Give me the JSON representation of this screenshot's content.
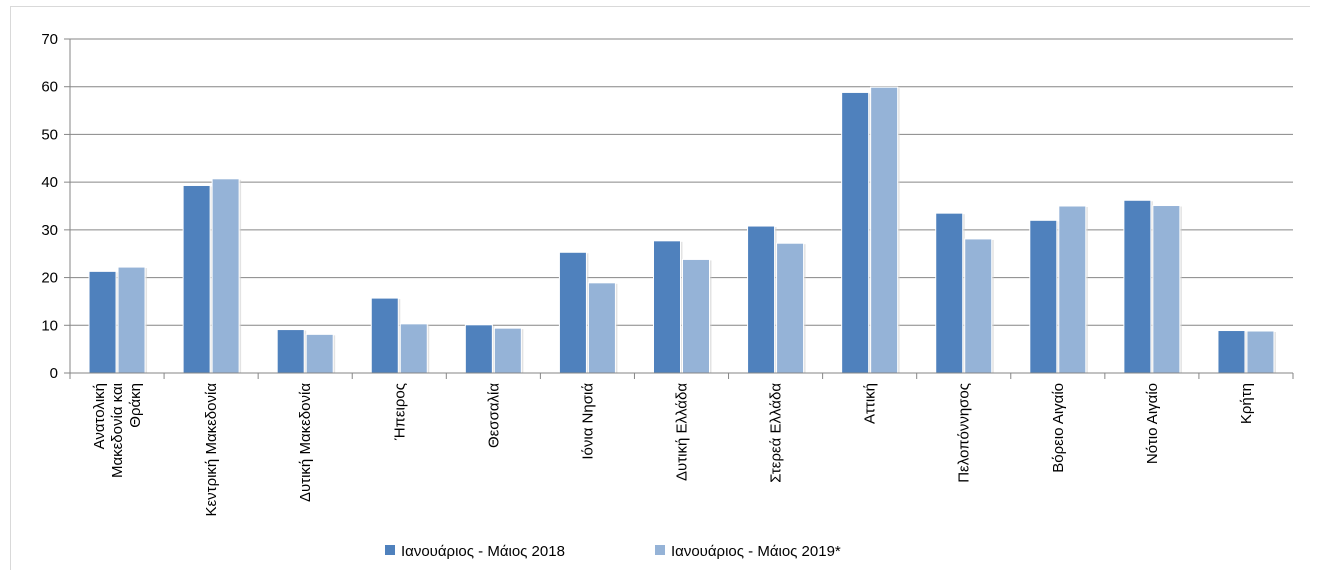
{
  "chart_data": {
    "type": "bar",
    "categories": [
      [
        "Ανατολική",
        "Μακεδονία και",
        "Θράκη"
      ],
      [
        "Κεντρική Μακεδονία"
      ],
      [
        "Δυτική Μακεδονία"
      ],
      [
        "Ήπειρος"
      ],
      [
        "Θεσσαλία"
      ],
      [
        "Ιόνια Νησιά"
      ],
      [
        "Δυτική Ελλάδα"
      ],
      [
        "Στερεά Ελλάδα"
      ],
      [
        "Αττική"
      ],
      [
        "Πελοπόννησος"
      ],
      [
        "Βόρειο Αιγαίο"
      ],
      [
        "Νότιο Αιγαίο"
      ],
      [
        "Κρήτη"
      ]
    ],
    "series": [
      {
        "name": "Ιανουάριος - Μάιος 2018",
        "color": "#4f81bd",
        "values": [
          21.3,
          39.3,
          9.1,
          15.7,
          10.1,
          25.3,
          27.7,
          30.8,
          58.8,
          33.5,
          32.0,
          36.2,
          8.9
        ]
      },
      {
        "name": "Ιανουάριος - Μάιος 2019*",
        "color": "#95b3d7",
        "values": [
          22.2,
          40.7,
          8.1,
          10.3,
          9.4,
          18.9,
          23.8,
          27.2,
          59.9,
          28.1,
          35.0,
          35.1,
          8.8
        ]
      }
    ],
    "ylim": [
      0,
      70
    ],
    "yticks": [
      0,
      10,
      20,
      30,
      40,
      50,
      60,
      70
    ],
    "grid": true,
    "legend_position": "bottom",
    "title": "",
    "xlabel": "",
    "ylabel": ""
  }
}
